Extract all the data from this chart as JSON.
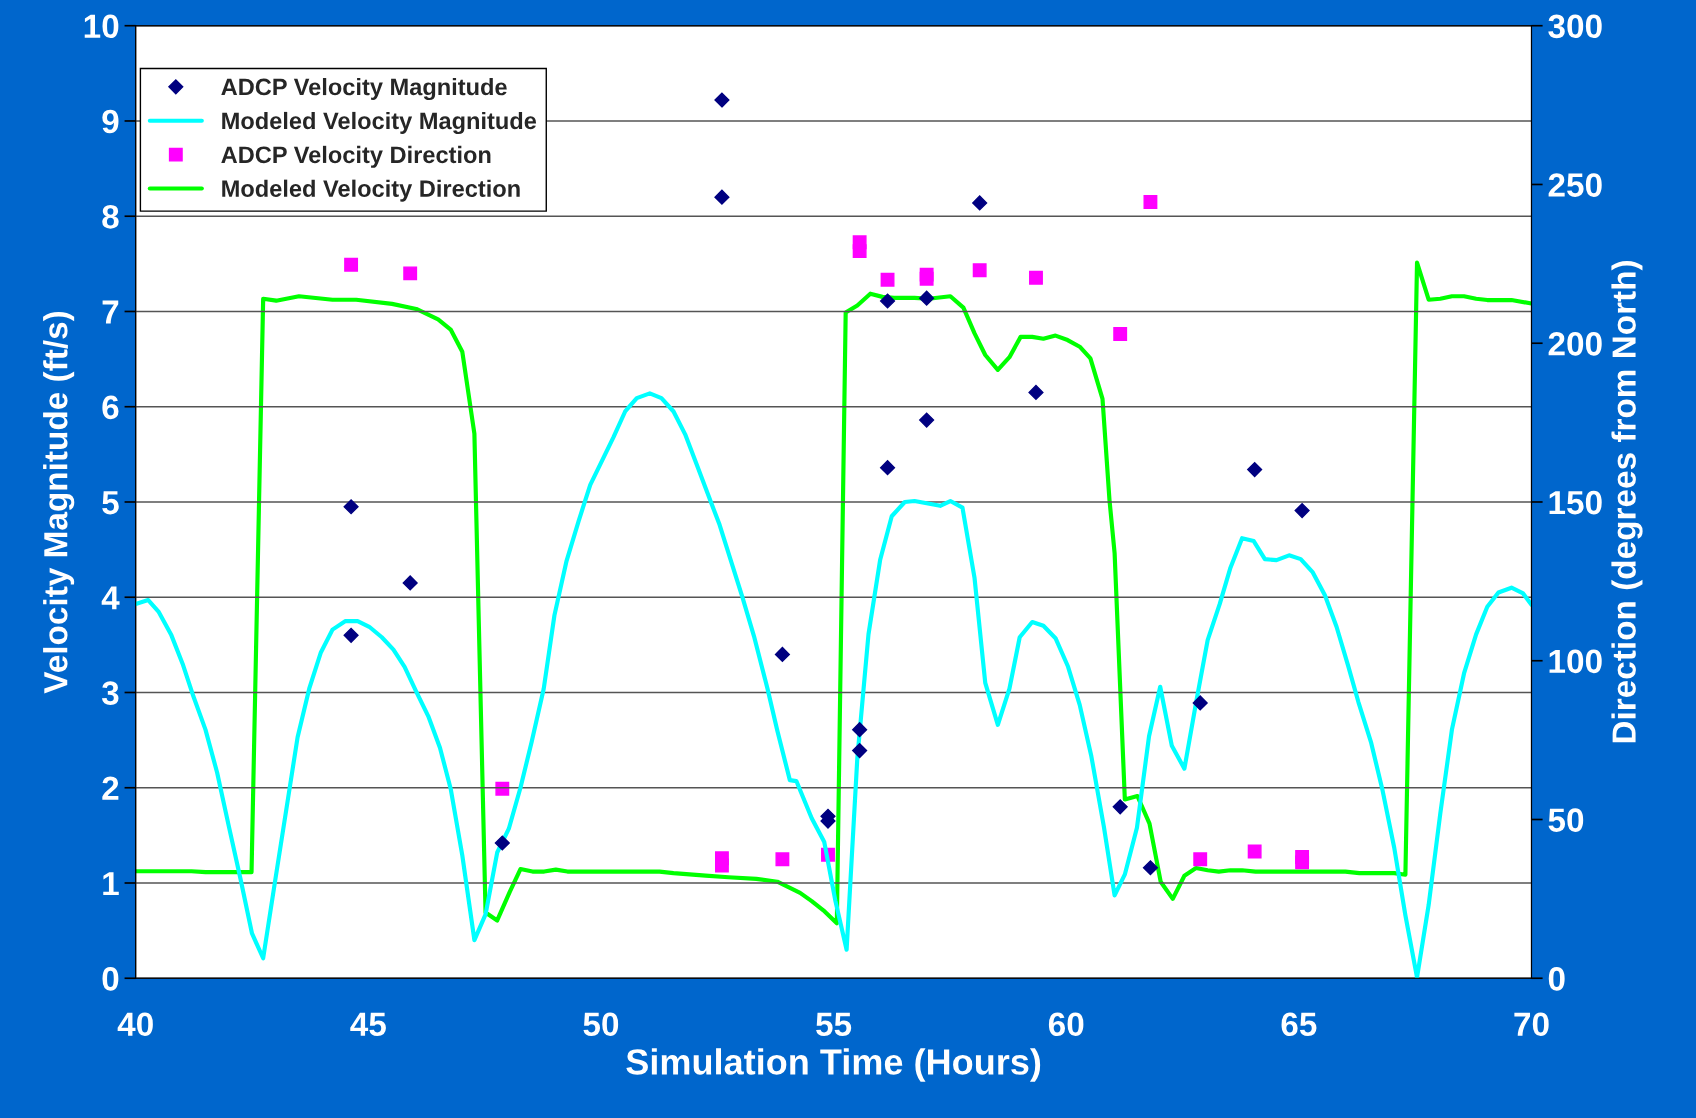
{
  "chart_data": {
    "type": "line",
    "xlabel": "Simulation Time (Hours)",
    "ylabel": "Velocity Magnitude (ft/s)",
    "y2label": "Direction (degrees from North)",
    "xlim": [
      40,
      70
    ],
    "xticks": [
      40,
      45,
      50,
      55,
      60,
      65,
      70
    ],
    "ylim": [
      0,
      10
    ],
    "yticks": [
      0,
      1,
      2,
      3,
      4,
      5,
      6,
      7,
      8,
      9,
      10
    ],
    "y2lim": [
      0,
      300
    ],
    "y2ticks": [
      0,
      50,
      100,
      150,
      200,
      250,
      300
    ],
    "grid": "y",
    "legend": "top left",
    "series": [
      {
        "name": "ADCP Velocity Magnitude",
        "type": "scatter",
        "marker": "diamond",
        "color": "#000080",
        "axis": "y",
        "x": [
          44.63,
          44.63,
          45.9,
          47.88,
          52.6,
          52.6,
          53.9,
          54.88,
          54.88,
          55.56,
          55.56,
          56.16,
          56.16,
          57.0,
          57.0,
          58.14,
          59.35,
          61.16,
          61.81,
          62.88,
          64.05,
          65.07
        ],
        "values": [
          4.95,
          3.6,
          4.15,
          1.42,
          9.22,
          8.2,
          3.4,
          1.7,
          1.65,
          2.61,
          2.39,
          7.11,
          5.36,
          7.14,
          5.86,
          8.14,
          6.15,
          1.8,
          1.16,
          2.89,
          5.34,
          4.91
        ]
      },
      {
        "name": "Modeled Velocity Magnitude",
        "marker": "none",
        "color": "#00ffff",
        "axis": "y",
        "x": [
          40.0,
          40.27,
          40.49,
          40.76,
          41.01,
          41.24,
          41.5,
          41.75,
          42.0,
          42.25,
          42.5,
          42.74,
          42.99,
          43.24,
          43.48,
          43.73,
          43.98,
          44.23,
          44.51,
          44.77,
          45.02,
          45.29,
          45.54,
          45.78,
          46.03,
          46.29,
          46.54,
          46.77,
          47.02,
          47.28,
          47.52,
          47.77,
          48.02,
          48.27,
          48.51,
          48.77,
          49.0,
          49.26,
          49.52,
          49.77,
          50.27,
          50.52,
          50.77,
          51.05,
          51.3,
          51.56,
          51.81,
          52.06,
          52.3,
          52.55,
          53.04,
          53.29,
          53.58,
          53.79,
          54.06,
          54.2,
          54.53,
          54.8,
          55.04,
          55.28,
          55.51,
          55.75,
          56.0,
          56.25,
          56.53,
          56.74,
          57.29,
          57.51,
          57.77,
          58.03,
          58.26,
          58.53,
          58.78,
          59.0,
          59.27,
          59.51,
          59.77,
          60.04,
          60.29,
          60.54,
          60.81,
          61.04,
          61.26,
          61.52,
          61.78,
          62.02,
          62.27,
          62.54,
          62.79,
          63.04,
          63.3,
          63.53,
          63.78,
          64.03,
          64.27,
          64.52,
          64.79,
          65.04,
          65.3,
          65.56,
          65.81,
          66.06,
          66.28,
          66.55,
          66.8,
          67.05,
          67.29,
          67.54,
          67.79,
          68.04,
          68.29,
          68.55,
          68.81,
          69.05,
          69.29,
          69.57,
          69.82,
          70.0
        ],
        "values": [
          3.93,
          3.97,
          3.85,
          3.61,
          3.3,
          2.96,
          2.61,
          2.16,
          1.6,
          1.05,
          0.47,
          0.21,
          1.0,
          1.78,
          2.53,
          3.04,
          3.42,
          3.66,
          3.75,
          3.75,
          3.69,
          3.58,
          3.45,
          3.27,
          3.01,
          2.75,
          2.42,
          1.99,
          1.29,
          0.4,
          0.67,
          1.32,
          1.57,
          2.0,
          2.48,
          3.04,
          3.81,
          4.38,
          4.8,
          5.18,
          5.68,
          5.95,
          6.09,
          6.14,
          6.09,
          5.95,
          5.71,
          5.39,
          5.08,
          4.76,
          4.0,
          3.59,
          3.04,
          2.6,
          2.08,
          2.07,
          1.68,
          1.43,
          0.81,
          0.3,
          2.31,
          3.61,
          4.39,
          4.85,
          5.0,
          5.01,
          4.96,
          5.01,
          4.94,
          4.2,
          3.1,
          2.66,
          3.04,
          3.58,
          3.74,
          3.7,
          3.57,
          3.27,
          2.87,
          2.33,
          1.59,
          0.87,
          1.09,
          1.58,
          2.54,
          3.06,
          2.44,
          2.2,
          2.89,
          3.55,
          3.93,
          4.31,
          4.62,
          4.59,
          4.4,
          4.39,
          4.44,
          4.4,
          4.26,
          4.02,
          3.69,
          3.28,
          2.9,
          2.48,
          1.97,
          1.37,
          0.66,
          0.01,
          0.77,
          1.73,
          2.61,
          3.2,
          3.61,
          3.9,
          4.05,
          4.1,
          4.04,
          3.92
        ]
      },
      {
        "name": "ADCP Velocity Direction",
        "type": "scatter",
        "marker": "square",
        "color": "#ff00ff",
        "axis": "y2",
        "x": [
          44.63,
          45.9,
          47.88,
          52.6,
          52.6,
          53.9,
          54.88,
          55.56,
          55.56,
          56.16,
          57.0,
          57.0,
          58.14,
          59.35,
          61.16,
          61.81,
          62.88,
          64.05,
          65.07,
          65.07
        ],
        "values": [
          224.7,
          222,
          59.7,
          37.8,
          35.5,
          37.5,
          38.9,
          231.8,
          229,
          220,
          221.6,
          220.3,
          223,
          220.6,
          202.9,
          244.5,
          37.5,
          39.9,
          38.2,
          36.5
        ]
      },
      {
        "name": "Modeled Velocity Direction",
        "marker": "none",
        "color": "#00ff00",
        "axis": "y2",
        "x": [
          40.0,
          41.2,
          41.5,
          42.49,
          42.74,
          43.02,
          43.51,
          44.23,
          44.74,
          45.51,
          46.03,
          46.5,
          46.77,
          47.02,
          47.28,
          47.52,
          47.77,
          48.04,
          48.27,
          48.53,
          48.78,
          49.03,
          49.28,
          51.26,
          51.56,
          52.25,
          52.74,
          53.34,
          53.79,
          54.28,
          54.53,
          54.78,
          55.07,
          55.26,
          55.51,
          55.79,
          56.05,
          56.3,
          56.74,
          57.04,
          57.51,
          57.79,
          58.03,
          58.26,
          58.53,
          58.78,
          59.02,
          59.27,
          59.51,
          59.77,
          60.03,
          60.29,
          60.52,
          60.78,
          60.93,
          61.04,
          61.26,
          61.53,
          61.79,
          62.03,
          62.29,
          62.54,
          62.79,
          63.04,
          63.28,
          63.53,
          63.78,
          64.07,
          66.0,
          66.3,
          67.05,
          67.29,
          67.54,
          67.79,
          68.04,
          68.29,
          68.55,
          68.81,
          69.05,
          69.57,
          70.0
        ],
        "values": [
          33.7,
          33.7,
          33.4,
          33.4,
          214,
          213.4,
          214.8,
          213.7,
          213.7,
          212.4,
          210.8,
          207.5,
          204.3,
          197.3,
          171.5,
          20.7,
          18.2,
          27.2,
          34.4,
          33.6,
          33.6,
          34.2,
          33.6,
          33.6,
          33.1,
          32.3,
          31.8,
          31.3,
          30.4,
          26.9,
          24.3,
          21.4,
          17.3,
          209.7,
          211.9,
          215.6,
          214.6,
          214.3,
          214.3,
          214,
          214.8,
          211.2,
          203.1,
          196.3,
          191.6,
          195.6,
          202,
          202,
          201.4,
          202.4,
          201,
          198.9,
          195.2,
          182.5,
          150.6,
          133.9,
          56.3,
          57.4,
          48.7,
          30.4,
          25.0,
          32.3,
          34.7,
          34.0,
          33.6,
          34.0,
          34.0,
          33.6,
          33.6,
          33.1,
          33.1,
          32.6,
          225.4,
          213.7,
          214,
          214.8,
          214.8,
          214,
          213.6,
          213.6,
          212.5
        ]
      }
    ]
  }
}
